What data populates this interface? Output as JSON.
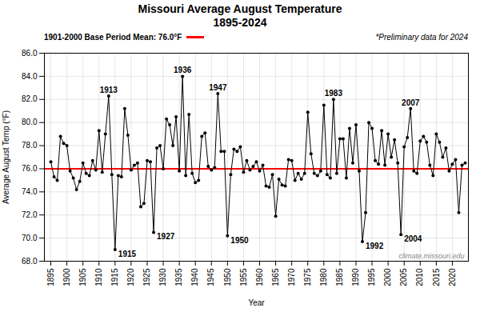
{
  "chart_data": {
    "type": "line",
    "title": "Missouri Average August Temperature\n1895-2024",
    "xlabel": "Year",
    "ylabel": "Average August Temp (°F)",
    "x": [
      1895,
      1896,
      1897,
      1898,
      1899,
      1900,
      1901,
      1902,
      1903,
      1904,
      1905,
      1906,
      1907,
      1908,
      1909,
      1910,
      1911,
      1912,
      1913,
      1914,
      1915,
      1916,
      1917,
      1918,
      1919,
      1920,
      1921,
      1922,
      1923,
      1924,
      1925,
      1926,
      1927,
      1928,
      1929,
      1930,
      1931,
      1932,
      1933,
      1934,
      1935,
      1936,
      1937,
      1938,
      1939,
      1940,
      1941,
      1942,
      1943,
      1944,
      1945,
      1946,
      1947,
      1948,
      1949,
      1950,
      1951,
      1952,
      1953,
      1954,
      1955,
      1956,
      1957,
      1958,
      1959,
      1960,
      1961,
      1962,
      1963,
      1964,
      1965,
      1966,
      1967,
      1968,
      1969,
      1970,
      1971,
      1972,
      1973,
      1974,
      1975,
      1976,
      1977,
      1978,
      1979,
      1980,
      1981,
      1982,
      1983,
      1984,
      1985,
      1986,
      1987,
      1988,
      1989,
      1990,
      1991,
      1992,
      1993,
      1994,
      1995,
      1996,
      1997,
      1998,
      1999,
      2000,
      2001,
      2002,
      2003,
      2004,
      2005,
      2006,
      2007,
      2008,
      2009,
      2010,
      2011,
      2012,
      2013,
      2014,
      2015,
      2016,
      2017,
      2018,
      2019,
      2020,
      2021,
      2022,
      2023,
      2024
    ],
    "values": [
      76.6,
      75.3,
      75.0,
      78.8,
      78.2,
      78.0,
      75.8,
      75.2,
      74.2,
      74.9,
      76.5,
      75.6,
      75.4,
      76.7,
      75.9,
      79.3,
      75.7,
      79.0,
      82.3,
      75.5,
      69.0,
      75.4,
      75.3,
      81.2,
      78.9,
      75.9,
      76.3,
      76.5,
      72.7,
      73.0,
      76.7,
      76.6,
      70.5,
      77.8,
      78.0,
      76.0,
      80.3,
      79.8,
      78.0,
      80.5,
      75.8,
      84.0,
      75.4,
      80.7,
      75.6,
      74.8,
      75.0,
      78.8,
      79.1,
      76.2,
      75.9,
      76.1,
      82.5,
      77.5,
      77.5,
      70.2,
      75.5,
      77.7,
      77.5,
      77.9,
      75.7,
      76.7,
      75.9,
      76.2,
      76.6,
      75.8,
      76.3,
      74.5,
      74.4,
      75.5,
      71.9,
      75.1,
      74.6,
      74.5,
      76.8,
      76.7,
      75.0,
      75.6,
      75.1,
      75.6,
      80.9,
      77.3,
      75.6,
      75.4,
      75.8,
      81.5,
      75.5,
      75.2,
      82.0,
      75.6,
      78.6,
      78.6,
      75.2,
      79.5,
      76.5,
      79.8,
      75.8,
      69.7,
      72.2,
      80.0,
      79.5,
      76.7,
      76.4,
      79.3,
      76.3,
      79.0,
      77.0,
      78.5,
      76.5,
      70.3,
      77.9,
      78.7,
      81.2,
      75.8,
      75.6,
      78.4,
      78.8,
      78.3,
      76.3,
      75.4,
      79.0,
      78.3,
      77.0,
      77.8,
      75.8,
      76.4,
      76.8,
      72.2,
      76.3,
      76.5
    ],
    "marker": "o",
    "xlim": [
      1893,
      2025
    ],
    "xticks": [
      1895,
      1900,
      1905,
      1910,
      1915,
      1920,
      1925,
      1930,
      1935,
      1940,
      1945,
      1950,
      1955,
      1960,
      1965,
      1970,
      1975,
      1980,
      1985,
      1990,
      1995,
      2000,
      2005,
      2010,
      2015,
      2020
    ],
    "ylim": [
      68.0,
      86.0
    ],
    "yticks": [
      {
        "value": 68.0,
        "label": "68.0"
      },
      {
        "value": 70.0,
        "label": "70.0"
      },
      {
        "value": 72.0,
        "label": "72.0"
      },
      {
        "value": 74.0,
        "label": "74.0"
      },
      {
        "value": 76.0,
        "label": "76.0"
      },
      {
        "value": 78.0,
        "label": "78.0"
      },
      {
        "value": 80.0,
        "label": "80.0"
      },
      {
        "value": 82.0,
        "label": "82.0"
      },
      {
        "value": 84.0,
        "label": "84.0"
      },
      {
        "value": 86.0,
        "label": "86.0"
      }
    ],
    "grid": true,
    "reference_line": {
      "value": 76.0,
      "label": "1901-2000 Base Period Mean: 76.0°F",
      "color": "red"
    },
    "annotations": [
      {
        "x": 1913,
        "text": "1913"
      },
      {
        "x": 1915,
        "text": "1915"
      },
      {
        "x": 1927,
        "text": "1927"
      },
      {
        "x": 1936,
        "text": "1936"
      },
      {
        "x": 1947,
        "text": "1947"
      },
      {
        "x": 1950,
        "text": "1950"
      },
      {
        "x": 1983,
        "text": "1983"
      },
      {
        "x": 1992,
        "text": "1992"
      },
      {
        "x": 2004,
        "text": "2004"
      },
      {
        "x": 2007,
        "text": "2007"
      }
    ],
    "note": "*Preliminary data for 2024",
    "source": "climate.missouri.edu"
  }
}
